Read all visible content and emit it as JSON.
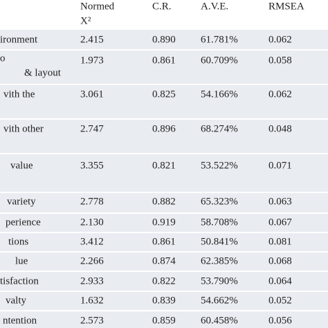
{
  "table": {
    "header": [
      [
        "Normed",
        "X²"
      ],
      [
        "C.R."
      ],
      [
        "A.V.E."
      ],
      [
        "RMSEA"
      ]
    ],
    "rows": [
      {
        "label": [
          "ironment"
        ],
        "cells": [
          "2.415",
          "0.890",
          "61.781%",
          "0.062"
        ]
      },
      {
        "label": [
          "o",
          "& layout"
        ],
        "cells": [
          "1.973",
          "0.861",
          "60.709%",
          "0.058"
        ]
      },
      {
        "label": [
          "vith the"
        ],
        "cells": [
          "3.061",
          "0.825",
          "54.166%",
          "0.062"
        ]
      },
      {
        "label": [
          "vith other"
        ],
        "cells": [
          "2.747",
          "0.896",
          "68.274%",
          "0.048"
        ]
      },
      {
        "label": [
          "value"
        ],
        "cells": [
          "3.355",
          "0.821",
          "53.522%",
          "0.071"
        ]
      },
      {
        "label": [
          "variety"
        ],
        "cells": [
          "2.778",
          "0.882",
          "65.323%",
          "0.063"
        ]
      },
      {
        "label": [
          "perience"
        ],
        "cells": [
          "2.130",
          "0.919",
          "58.708%",
          "0.067"
        ]
      },
      {
        "label": [
          "tions"
        ],
        "cells": [
          "3.412",
          "0.861",
          "50.841%",
          "0.081"
        ]
      },
      {
        "label": [
          "lue"
        ],
        "cells": [
          "2.266",
          "0.874",
          "62.385%",
          "0.068"
        ]
      },
      {
        "label": [
          "tisfaction"
        ],
        "cells": [
          "2.933",
          "0.822",
          "53.790%",
          "0.064"
        ]
      },
      {
        "label": [
          "valty"
        ],
        "cells": [
          "1.632",
          "0.839",
          "54.662%",
          "0.052"
        ]
      },
      {
        "label": [
          "ntention"
        ],
        "cells": [
          "2.573",
          "0.859",
          "60.458%",
          "0.056"
        ]
      }
    ]
  }
}
